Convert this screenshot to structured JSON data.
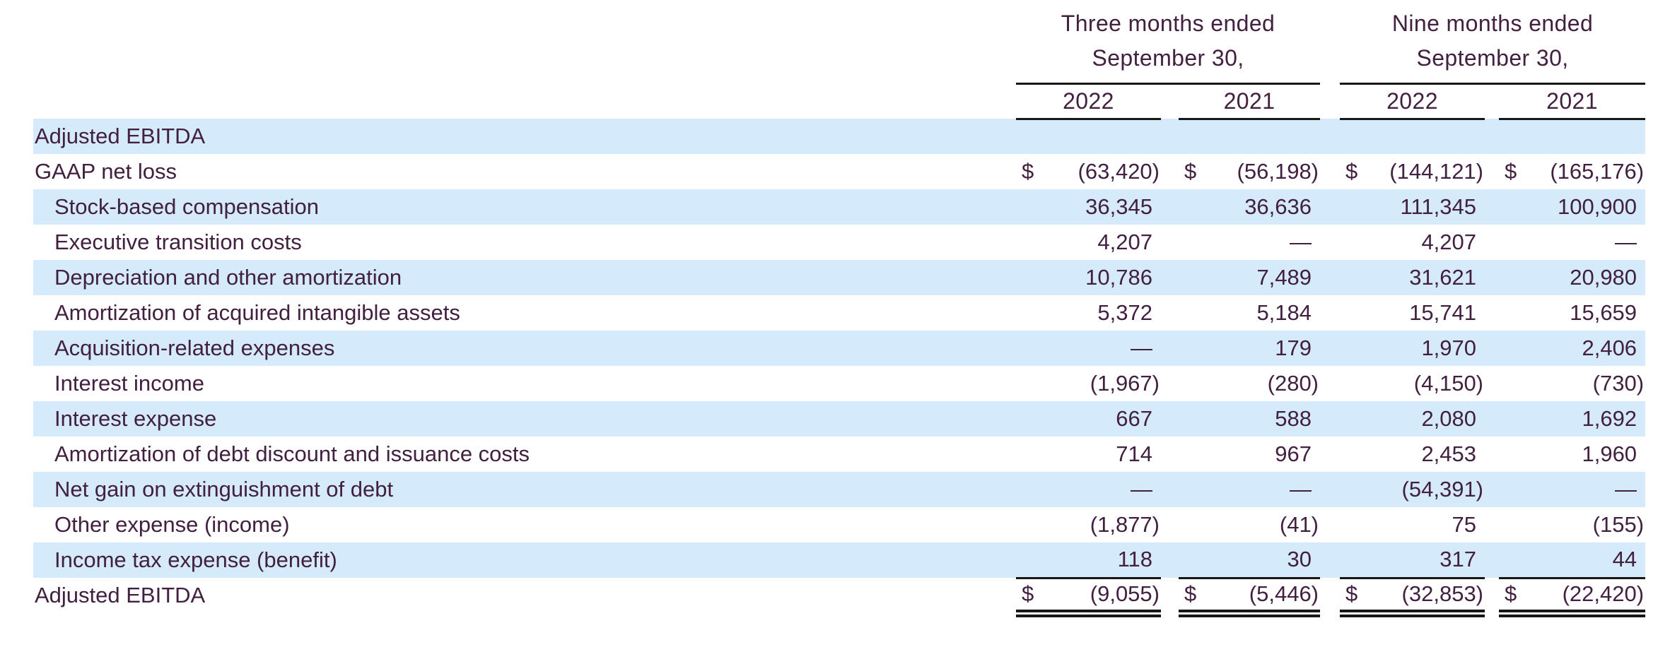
{
  "table": {
    "header": {
      "groups": [
        {
          "line1": "Three months ended",
          "line2": "September 30,",
          "years": [
            "2022",
            "2021"
          ]
        },
        {
          "line1": "Nine months ended",
          "line2": "September 30,",
          "years": [
            "2022",
            "2021"
          ]
        }
      ]
    },
    "rows": [
      {
        "label": "Adjusted EBITDA",
        "indent": 0,
        "highlight": true,
        "section": true,
        "dollar": false,
        "total": false,
        "values": [
          "",
          "",
          "",
          ""
        ]
      },
      {
        "label": "GAAP net loss",
        "indent": 0,
        "highlight": false,
        "section": false,
        "dollar": true,
        "total": false,
        "values": [
          "(63,420)",
          "(56,198)",
          "(144,121)",
          "(165,176)"
        ]
      },
      {
        "label": "Stock-based compensation",
        "indent": 1,
        "highlight": true,
        "section": false,
        "dollar": false,
        "total": false,
        "values": [
          "36,345",
          "36,636",
          "111,345",
          "100,900"
        ]
      },
      {
        "label": "Executive transition costs",
        "indent": 1,
        "highlight": false,
        "section": false,
        "dollar": false,
        "total": false,
        "values": [
          "4,207",
          "—",
          "4,207",
          "—"
        ]
      },
      {
        "label": "Depreciation and other amortization",
        "indent": 1,
        "highlight": true,
        "section": false,
        "dollar": false,
        "total": false,
        "values": [
          "10,786",
          "7,489",
          "31,621",
          "20,980"
        ]
      },
      {
        "label": "Amortization of acquired intangible assets",
        "indent": 1,
        "highlight": false,
        "section": false,
        "dollar": false,
        "total": false,
        "values": [
          "5,372",
          "5,184",
          "15,741",
          "15,659"
        ]
      },
      {
        "label": "Acquisition-related expenses",
        "indent": 1,
        "highlight": true,
        "section": false,
        "dollar": false,
        "total": false,
        "values": [
          "—",
          "179",
          "1,970",
          "2,406"
        ]
      },
      {
        "label": "Interest income",
        "indent": 1,
        "highlight": false,
        "section": false,
        "dollar": false,
        "total": false,
        "values": [
          "(1,967)",
          "(280)",
          "(4,150)",
          "(730)"
        ]
      },
      {
        "label": "Interest expense",
        "indent": 1,
        "highlight": true,
        "section": false,
        "dollar": false,
        "total": false,
        "values": [
          "667",
          "588",
          "2,080",
          "1,692"
        ]
      },
      {
        "label": "Amortization of debt discount and issuance costs",
        "indent": 1,
        "highlight": false,
        "section": false,
        "dollar": false,
        "total": false,
        "values": [
          "714",
          "967",
          "2,453",
          "1,960"
        ]
      },
      {
        "label": "Net gain on extinguishment of debt",
        "indent": 1,
        "highlight": true,
        "section": false,
        "dollar": false,
        "total": false,
        "values": [
          "—",
          "—",
          "(54,391)",
          "—"
        ]
      },
      {
        "label": "Other expense (income)",
        "indent": 1,
        "highlight": false,
        "section": false,
        "dollar": false,
        "total": false,
        "values": [
          "(1,877)",
          "(41)",
          "75",
          "(155)"
        ]
      },
      {
        "label": "Income tax expense (benefit)",
        "indent": 1,
        "highlight": true,
        "section": false,
        "dollar": false,
        "total": false,
        "values": [
          "118",
          "30",
          "317",
          "44"
        ]
      },
      {
        "label": "Adjusted EBITDA",
        "indent": 0,
        "highlight": false,
        "section": false,
        "dollar": true,
        "total": true,
        "values": [
          "(9,055)",
          "(5,446)",
          "(32,853)",
          "(22,420)"
        ]
      }
    ],
    "currency_symbol": "$",
    "colors": {
      "highlight_row": "#d5eafa",
      "text": "#42203f",
      "rule": "#171717",
      "background": "#ffffff"
    }
  }
}
